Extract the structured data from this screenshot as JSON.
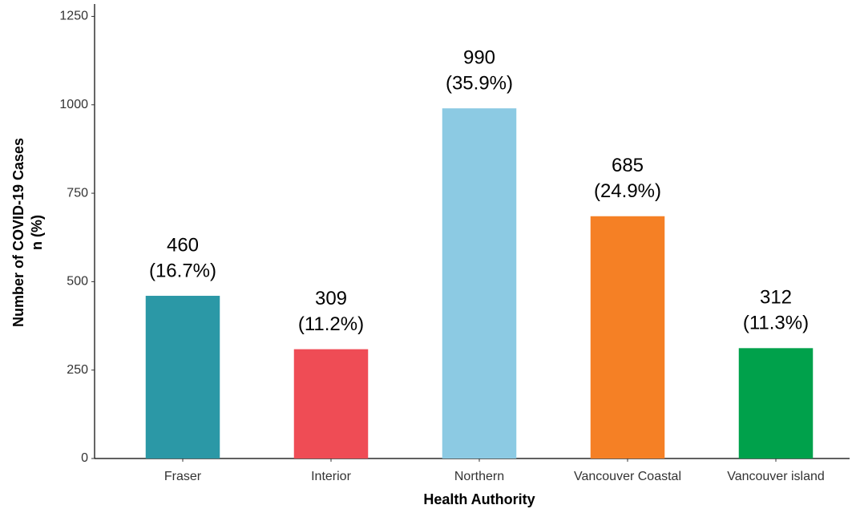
{
  "chart_data": {
    "type": "bar",
    "xlabel": "Health Authority",
    "ylabel": [
      "Number of COVID-19 Cases",
      "n (%)"
    ],
    "categories": [
      "Fraser",
      "Interior",
      "Northern",
      "Vancouver Coastal",
      "Vancouver island"
    ],
    "values": [
      460,
      309,
      990,
      685,
      312
    ],
    "percent_labels": [
      "(16.7%)",
      "(11.2%)",
      "(35.9%)",
      "(24.9%)",
      "(11.3%)"
    ],
    "colors": [
      "#2b98a6",
      "#ef4c55",
      "#8ccae3",
      "#f58025",
      "#00a14b"
    ],
    "ylim": [
      0,
      1285
    ],
    "yticks": [
      0,
      250,
      500,
      750,
      1000,
      1250
    ],
    "grid": false
  }
}
